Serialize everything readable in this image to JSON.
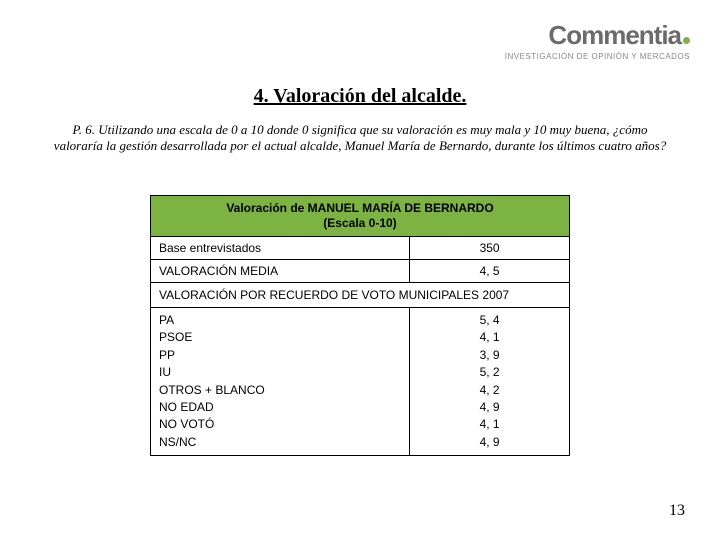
{
  "logo": {
    "brand": "Commentia",
    "tagline": "INVESTIGACIÓN DE OPINIÓN Y MERCADOS"
  },
  "title": "4. Valoración del alcalde.",
  "question": "P. 6.  Utilizando una escala de 0 a 10 donde 0 significa que su valoración es muy mala y 10 muy buena, ¿cómo valoraría la gestión desarrollada por el actual alcalde, Manuel María de Bernardo, durante los últimos cuatro años?",
  "table": {
    "header_line1": "Valoración de MANUEL MARÍA DE BERNARDO",
    "header_line2": "(Escala 0-10)",
    "rows": [
      {
        "label": "Base entrevistados",
        "value": "350"
      },
      {
        "label": "VALORACIÓN MEDIA",
        "value": "4, 5"
      }
    ],
    "subheader": "VALORACIÓN POR RECUERDO DE VOTO MUNICIPALES 2007",
    "parties": [
      {
        "label": "PA",
        "value": "5, 4"
      },
      {
        "label": "PSOE",
        "value": "4, 1"
      },
      {
        "label": "PP",
        "value": "3, 9"
      },
      {
        "label": "IU",
        "value": "5, 2"
      },
      {
        "label": "OTROS + BLANCO",
        "value": "4, 2"
      },
      {
        "label": "NO EDAD",
        "value": "4, 9"
      },
      {
        "label": "NO VOTÓ",
        "value": "4, 1"
      },
      {
        "label": "NS/NC",
        "value": "4, 9"
      }
    ]
  },
  "page_number": "13",
  "colors": {
    "accent_green": "#7cb342",
    "logo_gray": "#6b6b6b"
  }
}
